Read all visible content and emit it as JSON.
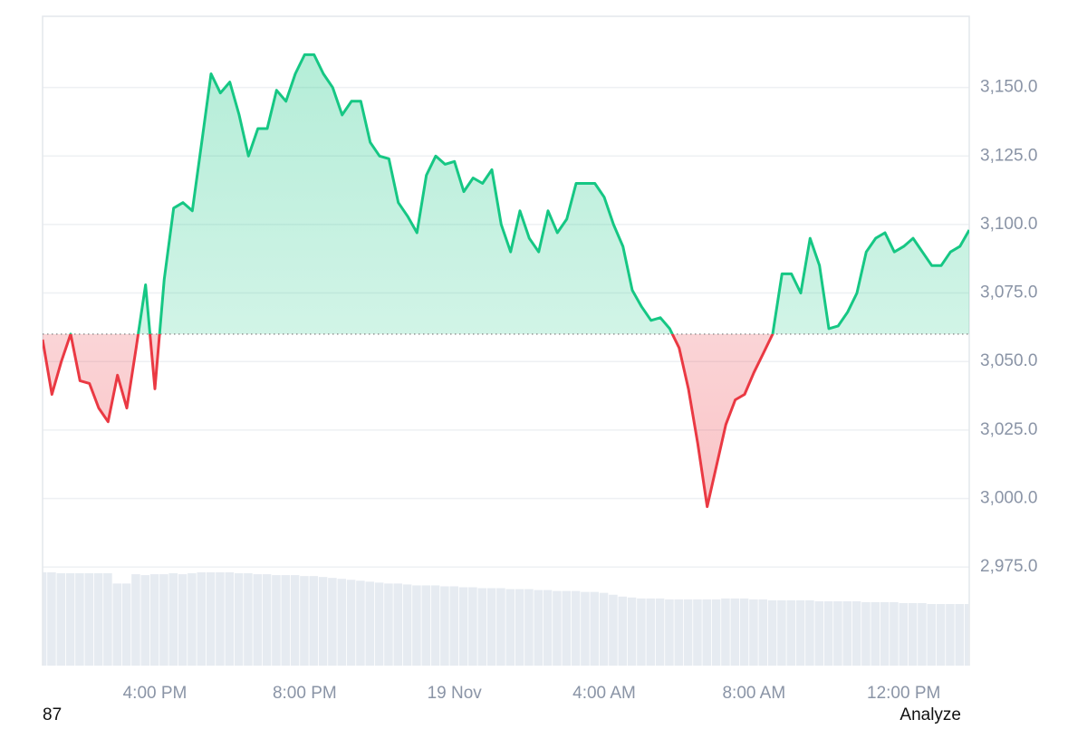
{
  "chart_data": {
    "type": "line",
    "categories": [
      null,
      null,
      null,
      null,
      null,
      null,
      null,
      null,
      null,
      null,
      null,
      null,
      "4:00 PM",
      null,
      null,
      null,
      null,
      null,
      null,
      null,
      null,
      null,
      null,
      null,
      null,
      null,
      null,
      null,
      "8:00 PM",
      null,
      null,
      null,
      null,
      null,
      null,
      null,
      null,
      null,
      null,
      null,
      null,
      null,
      null,
      null,
      "19 Nov",
      null,
      null,
      null,
      null,
      null,
      null,
      null,
      null,
      null,
      null,
      null,
      null,
      null,
      null,
      null,
      "4:00 AM",
      null,
      null,
      null,
      null,
      null,
      null,
      null,
      null,
      null,
      null,
      null,
      null,
      null,
      null,
      null,
      "8:00 AM",
      null,
      null,
      null,
      null,
      null,
      null,
      null,
      null,
      null,
      null,
      null,
      null,
      null,
      null,
      null,
      "12:00 PM",
      null,
      null,
      null,
      null,
      null,
      null,
      null
    ],
    "values": [
      3058,
      3038,
      3050,
      3060,
      3043,
      3042,
      3033,
      3028,
      3045,
      3033,
      3055,
      3078,
      3040,
      3080,
      3106,
      3108,
      3105,
      3130,
      3155,
      3148,
      3152,
      3140,
      3125,
      3135,
      3135,
      3149,
      3145,
      3155,
      3162,
      3162,
      3155,
      3150,
      3140,
      3145,
      3145,
      3130,
      3125,
      3124,
      3108,
      3103,
      3097,
      3118,
      3125,
      3122,
      3123,
      3112,
      3117,
      3115,
      3120,
      3100,
      3090,
      3105,
      3095,
      3090,
      3105,
      3097,
      3102,
      3115,
      3115,
      3115,
      3110,
      3100,
      3092,
      3076,
      3070,
      3065,
      3066,
      3062,
      3055,
      3040,
      3020,
      2997,
      3012,
      3027,
      3036,
      3038,
      3046,
      3053,
      3060,
      3082,
      3082,
      3075,
      3095,
      3085,
      3062,
      3063,
      3068,
      3075,
      3090,
      3095,
      3097,
      3090,
      3092,
      3095,
      3090,
      3085,
      3085,
      3090,
      3092,
      3098
    ],
    "volume": [
      100,
      100,
      99,
      99,
      99,
      99,
      99,
      99,
      88,
      88,
      98,
      97,
      98,
      98,
      99,
      98,
      99,
      100,
      100,
      100,
      100,
      99,
      99,
      98,
      98,
      97,
      97,
      97,
      96,
      96,
      95,
      94,
      93,
      92,
      91,
      90,
      89,
      88,
      88,
      87,
      86,
      86,
      86,
      85,
      85,
      84,
      84,
      83,
      83,
      83,
      82,
      82,
      82,
      81,
      81,
      80,
      80,
      80,
      79,
      79,
      78,
      76,
      74,
      73,
      72,
      72,
      72,
      71,
      71,
      71,
      71,
      71,
      71,
      72,
      72,
      72,
      71,
      71,
      70,
      70,
      70,
      70,
      70,
      69,
      69,
      69,
      69,
      69,
      68,
      68,
      68,
      68,
      67,
      67,
      67,
      66,
      66,
      66,
      66,
      66
    ],
    "baseline": 3060,
    "up_color": "#16c784",
    "down_color": "#ea3943",
    "volume_color": "#e6ebf1",
    "ylim": [
      2939,
      3176
    ],
    "yticks": [
      {
        "value": 2975,
        "label": "2,975.0"
      },
      {
        "value": 3000,
        "label": "3,000.0"
      },
      {
        "value": 3025,
        "label": "3,025.0"
      },
      {
        "value": 3050,
        "label": "3,050.0"
      },
      {
        "value": 3075,
        "label": "3,075.0"
      },
      {
        "value": 3100,
        "label": "3,100.0"
      },
      {
        "value": 3125,
        "label": "3,125.0"
      },
      {
        "value": 3150,
        "label": "3,150.0"
      }
    ],
    "grid": true
  },
  "footer": {
    "left": "87",
    "right": "Analyze"
  }
}
